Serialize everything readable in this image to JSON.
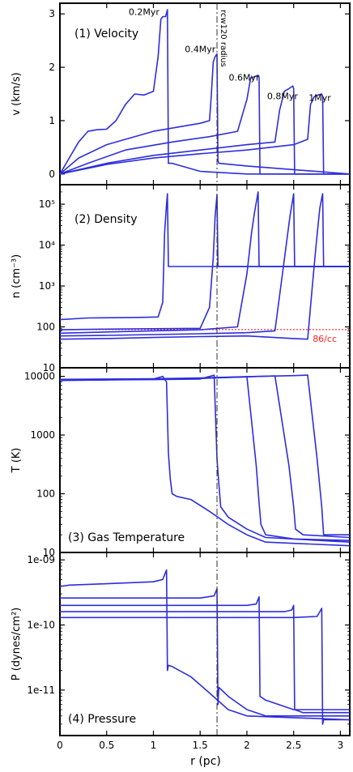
{
  "figure": {
    "xlabel": "r (pc)",
    "x_ticks": [
      0,
      0.5,
      1,
      1.5,
      2,
      2.5,
      3
    ],
    "x_tick_labels": [
      "0",
      "0.5",
      "1",
      "1.5",
      "2",
      "2.5",
      "3"
    ],
    "xlim": [
      0,
      3.1
    ],
    "rcw120_radius_pc": 1.68,
    "rcw120_label": "rcw120 radius",
    "colors": {
      "series": "#2d2ddc",
      "reference": "#ff2020",
      "axis": "#000000"
    }
  },
  "chart_data": [
    {
      "type": "line",
      "title": "(1) Velocity",
      "ylabel": "v (km/s)",
      "yscale": "linear",
      "ylim": [
        -0.2,
        3.2
      ],
      "y_ticks": [
        0,
        1,
        2,
        3
      ],
      "y_tick_labels": [
        "0",
        "1",
        "2",
        "3"
      ],
      "annotations": [
        {
          "text": "0.2Myr",
          "x": 0.9,
          "y": 2.98
        },
        {
          "text": "0.4Myr",
          "x": 1.5,
          "y": 2.28
        },
        {
          "text": "0.6Myr",
          "x": 1.97,
          "y": 1.75
        },
        {
          "text": "0.8Myr",
          "x": 2.38,
          "y": 1.4
        },
        {
          "text": "1Myr",
          "x": 2.78,
          "y": 1.37
        }
      ],
      "series": [
        {
          "x": [
            0,
            0.1,
            0.2,
            0.3,
            0.4,
            0.5,
            0.6,
            0.7,
            0.8,
            0.9,
            1.0,
            1.05,
            1.08,
            1.1,
            1.13,
            1.15,
            1.16,
            1.2,
            1.5,
            2.0,
            3.1
          ],
          "y": [
            0,
            0.3,
            0.6,
            0.8,
            0.83,
            0.84,
            1.0,
            1.3,
            1.5,
            1.48,
            1.55,
            2.2,
            2.9,
            2.95,
            2.95,
            3.08,
            0.2,
            0.2,
            0.05,
            0.0,
            0.0
          ]
        },
        {
          "x": [
            0,
            0.2,
            0.5,
            1.0,
            1.5,
            1.6,
            1.62,
            1.64,
            1.66,
            1.68,
            1.69,
            1.7,
            2.0,
            3.1
          ],
          "y": [
            0,
            0.3,
            0.55,
            0.8,
            0.95,
            1.0,
            1.5,
            2.1,
            2.2,
            2.25,
            0.25,
            0.2,
            0.15,
            0.0
          ]
        },
        {
          "x": [
            0,
            0.3,
            0.7,
            1.2,
            1.6,
            1.9,
            2.0,
            2.04,
            2.08,
            2.12,
            2.13,
            2.14,
            2.5,
            3.1
          ],
          "y": [
            0,
            0.2,
            0.45,
            0.6,
            0.7,
            0.8,
            1.4,
            1.8,
            1.82,
            1.85,
            1.8,
            0.0,
            0.0,
            0.0
          ]
        },
        {
          "x": [
            0,
            0.5,
            1.0,
            1.5,
            2.0,
            2.3,
            2.35,
            2.4,
            2.45,
            2.49,
            2.5,
            2.51,
            3.1
          ],
          "y": [
            0,
            0.2,
            0.35,
            0.45,
            0.55,
            0.6,
            1.2,
            1.55,
            1.6,
            1.65,
            1.6,
            0.0,
            0.0
          ]
        },
        {
          "x": [
            0,
            0.5,
            1.0,
            1.5,
            2.0,
            2.5,
            2.65,
            2.68,
            2.72,
            2.76,
            2.8,
            2.81,
            2.82,
            3.1
          ],
          "y": [
            0,
            0.18,
            0.3,
            0.38,
            0.45,
            0.55,
            0.65,
            1.3,
            1.45,
            1.48,
            1.5,
            1.45,
            0.0,
            0.0
          ]
        }
      ]
    },
    {
      "type": "line",
      "title": "(2) Density",
      "ylabel": "n (cm⁻³)",
      "yscale": "log",
      "ylim": [
        10,
        300000
      ],
      "y_ticks": [
        10,
        100,
        1000,
        10000,
        100000
      ],
      "y_tick_labels": [
        "10",
        "100",
        "10³",
        "10⁴",
        "10⁵"
      ],
      "reference_line": {
        "y": 86,
        "label": "86/cc"
      },
      "series": [
        {
          "x": [
            0,
            0.3,
            0.8,
            1.05,
            1.1,
            1.12,
            1.14,
            1.15,
            1.16,
            1.17,
            1.3,
            2.0,
            3.1
          ],
          "y": [
            150,
            165,
            170,
            175,
            400,
            20000,
            100000,
            180000,
            3000,
            3000,
            3000,
            3000,
            3000
          ]
        },
        {
          "x": [
            0,
            0.5,
            1.0,
            1.5,
            1.6,
            1.64,
            1.66,
            1.68,
            1.69,
            1.7,
            2.0,
            3.1
          ],
          "y": [
            85,
            88,
            90,
            92,
            300,
            5000,
            50000,
            170000,
            3000,
            3000,
            3000,
            3000
          ]
        },
        {
          "x": [
            0,
            0.5,
            1.0,
            1.5,
            1.9,
            2.0,
            2.05,
            2.08,
            2.12,
            2.13,
            2.14,
            3.1
          ],
          "y": [
            70,
            75,
            80,
            85,
            100,
            2000,
            20000,
            60000,
            200000,
            3000,
            3000,
            3000
          ]
        },
        {
          "x": [
            0,
            0.5,
            1.0,
            1.5,
            2.0,
            2.3,
            2.38,
            2.42,
            2.46,
            2.5,
            2.51,
            3.1
          ],
          "y": [
            60,
            62,
            65,
            68,
            72,
            80,
            2000,
            10000,
            50000,
            180000,
            3000,
            3000
          ]
        },
        {
          "x": [
            0,
            0.5,
            1.0,
            1.5,
            2.0,
            2.5,
            2.65,
            2.7,
            2.74,
            2.78,
            2.81,
            2.82,
            3.1
          ],
          "y": [
            50,
            52,
            55,
            58,
            60,
            52,
            50,
            1000,
            10000,
            80000,
            180000,
            3000,
            3000
          ]
        }
      ]
    },
    {
      "type": "line",
      "title": "(3) Gas Temperature",
      "ylabel": "T (K)",
      "yscale": "log",
      "ylim": [
        10,
        14000
      ],
      "y_ticks": [
        10,
        100,
        1000,
        10000
      ],
      "y_tick_labels": [
        "10",
        "100",
        "1000",
        "10000"
      ],
      "series": [
        {
          "x": [
            0,
            0.5,
            1.0,
            1.1,
            1.14,
            1.16,
            1.18,
            1.2,
            1.25,
            1.4,
            1.6,
            1.8,
            2.0,
            2.2,
            3.1
          ],
          "y": [
            8500,
            8700,
            9000,
            10000,
            8000,
            500,
            180,
            100,
            90,
            80,
            50,
            30,
            20,
            15,
            13
          ]
        },
        {
          "x": [
            0,
            0.5,
            1.0,
            1.5,
            1.65,
            1.68,
            1.7,
            1.72,
            1.8,
            2.0,
            2.2,
            3.1
          ],
          "y": [
            8600,
            8700,
            8800,
            9000,
            10500,
            400,
            150,
            60,
            40,
            25,
            18,
            15
          ]
        },
        {
          "x": [
            0,
            0.5,
            1.0,
            1.5,
            2.0,
            2.1,
            2.13,
            2.15,
            2.2,
            2.5,
            3.1
          ],
          "y": [
            8700,
            8800,
            8900,
            9200,
            9800,
            300,
            70,
            30,
            20,
            17,
            16
          ]
        },
        {
          "x": [
            0,
            0.5,
            1.0,
            1.5,
            2.0,
            2.3,
            2.45,
            2.5,
            2.52,
            2.6,
            3.1
          ],
          "y": [
            8800,
            8900,
            9000,
            9300,
            9800,
            10200,
            300,
            60,
            25,
            20,
            18
          ]
        },
        {
          "x": [
            0,
            0.5,
            1.0,
            1.5,
            2.0,
            2.5,
            2.65,
            2.75,
            2.8,
            2.82,
            2.9,
            3.1
          ],
          "y": [
            8900,
            9000,
            9100,
            9400,
            9900,
            10300,
            10500,
            400,
            60,
            20,
            20,
            20
          ]
        }
      ]
    },
    {
      "type": "line",
      "title": "(4) Pressure",
      "ylabel": "P (dynes/cm²)",
      "yscale": "log",
      "ylim": [
        2e-12,
        1.3e-09
      ],
      "y_ticks": [
        1e-11,
        1e-10,
        1e-09
      ],
      "y_tick_labels": [
        "1e-11",
        "1e-10",
        "1e-09"
      ],
      "series": [
        {
          "x": [
            0,
            0.1,
            0.5,
            1.0,
            1.1,
            1.14,
            1.15,
            1.16,
            1.2,
            1.4,
            1.6,
            1.8,
            2.0,
            3.1
          ],
          "y": [
            3.9e-10,
            4.1e-10,
            4.3e-10,
            4.6e-10,
            5e-10,
            7e-10,
            2e-11,
            2.4e-11,
            2.3e-11,
            1.6e-11,
            9e-12,
            5e-12,
            4e-12,
            3.5e-12
          ]
        },
        {
          "x": [
            0,
            0.5,
            1.0,
            1.5,
            1.65,
            1.68,
            1.69,
            1.7,
            1.8,
            2.0,
            2.2,
            3.1
          ],
          "y": [
            2.6e-10,
            2.6e-10,
            2.6e-10,
            2.6e-10,
            2.8e-10,
            3.6e-10,
            6e-12,
            1.1e-11,
            8e-12,
            5e-12,
            4e-12,
            4e-12
          ]
        },
        {
          "x": [
            0,
            0.5,
            1.0,
            1.5,
            2.0,
            2.1,
            2.13,
            2.14,
            2.2,
            2.5,
            3.1
          ],
          "y": [
            2e-10,
            2e-10,
            2e-10,
            2e-10,
            2e-10,
            2.1e-10,
            2.7e-10,
            8e-12,
            7e-12,
            5e-12,
            5e-12
          ]
        },
        {
          "x": [
            0,
            0.5,
            1.0,
            1.5,
            2.0,
            2.4,
            2.48,
            2.5,
            2.51,
            2.6,
            3.1
          ],
          "y": [
            1.6e-10,
            1.6e-10,
            1.6e-10,
            1.6e-10,
            1.6e-10,
            1.6e-10,
            1.7e-10,
            2e-10,
            5e-12,
            4.5e-12,
            4.5e-12
          ]
        },
        {
          "x": [
            0,
            0.5,
            1.0,
            1.5,
            2.0,
            2.5,
            2.75,
            2.8,
            2.81,
            2.82,
            2.9,
            3.1
          ],
          "y": [
            1.3e-10,
            1.3e-10,
            1.3e-10,
            1.3e-10,
            1.3e-10,
            1.3e-10,
            1.35e-10,
            1.8e-10,
            3e-12,
            3.5e-12,
            3.5e-12,
            3.5e-12
          ]
        }
      ]
    }
  ]
}
